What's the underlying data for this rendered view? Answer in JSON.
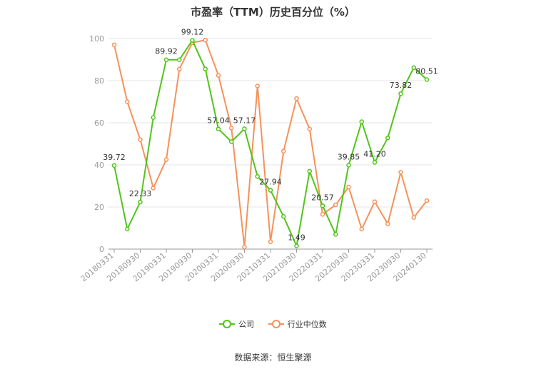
{
  "chart_data": {
    "type": "line",
    "title": "市盈率（TTM）历史百分位（%）",
    "ylim": [
      0,
      100
    ],
    "yticks": [
      0,
      20,
      40,
      60,
      80,
      100
    ],
    "grid": true,
    "legend_position": "bottom",
    "x_tick_labels": [
      "20180331",
      "20180930",
      "20190331",
      "20190930",
      "20200331",
      "20200930",
      "20210331",
      "20210930",
      "20220331",
      "20220930",
      "20230331",
      "20230930",
      "20240130"
    ],
    "x_count": 25,
    "series": [
      {
        "name": "公司",
        "color": "#52c41a",
        "values": [
          39.72,
          9.5,
          22.33,
          62.5,
          89.92,
          89.92,
          99.12,
          85.5,
          57.04,
          51.0,
          57.17,
          34.5,
          27.94,
          15.5,
          1.49,
          37.0,
          20.57,
          7.0,
          39.85,
          60.5,
          41.2,
          52.8,
          73.82,
          86.2,
          80.51
        ],
        "labels": {
          "0": "39.72",
          "2": "22.33",
          "4": "89.92",
          "6": "99.12",
          "8": "57.04",
          "10": "57.17",
          "12": "27.94",
          "14": "1.49",
          "16": "20.57",
          "18": "39.85",
          "20": "41.20",
          "22": "73.82",
          "24": "80.51"
        }
      },
      {
        "name": "行业中位数",
        "color": "#f5925a",
        "values": [
          97.0,
          70.0,
          52.0,
          29.0,
          42.5,
          85.5,
          98.0,
          99.3,
          82.5,
          57.5,
          1.0,
          77.5,
          3.5,
          46.5,
          71.5,
          57.0,
          16.5,
          21.0,
          29.5,
          9.5,
          22.5,
          12.0,
          36.5,
          15.0,
          23.0
        ]
      }
    ]
  },
  "footer": {
    "source": "数据来源：恒生聚源"
  }
}
